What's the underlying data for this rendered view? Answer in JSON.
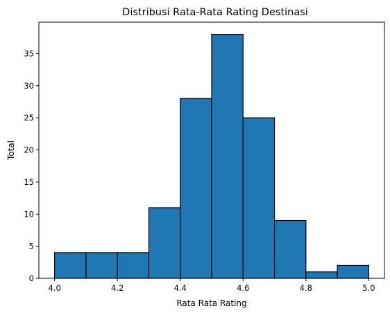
{
  "chart_data": {
    "type": "bar",
    "subtype": "histogram",
    "title": "Distribusi Rata-Rata Rating Destinasi",
    "xlabel": "Rata Rata Rating",
    "ylabel": "Total",
    "bins": [
      {
        "start": 4.0,
        "end": 4.1,
        "count": 4
      },
      {
        "start": 4.1,
        "end": 4.2,
        "count": 4
      },
      {
        "start": 4.2,
        "end": 4.3,
        "count": 4
      },
      {
        "start": 4.3,
        "end": 4.4,
        "count": 11
      },
      {
        "start": 4.4,
        "end": 4.5,
        "count": 28
      },
      {
        "start": 4.5,
        "end": 4.6,
        "count": 38
      },
      {
        "start": 4.6,
        "end": 4.7,
        "count": 25
      },
      {
        "start": 4.7,
        "end": 4.8,
        "count": 9
      },
      {
        "start": 4.8,
        "end": 4.9,
        "count": 1
      },
      {
        "start": 4.9,
        "end": 5.0,
        "count": 2
      }
    ],
    "xlim": [
      3.95,
      5.05
    ],
    "ylim": [
      0,
      39.9
    ],
    "xticks": [
      4.0,
      4.2,
      4.4,
      4.6,
      4.8,
      5.0
    ],
    "xtick_labels": [
      "4.0",
      "4.2",
      "4.4",
      "4.6",
      "4.8",
      "5.0"
    ],
    "yticks": [
      0,
      5,
      10,
      15,
      20,
      25,
      30,
      35
    ],
    "ytick_labels": [
      "0",
      "5",
      "10",
      "15",
      "20",
      "25",
      "30",
      "35"
    ],
    "bar_color": "#1f77b4",
    "edge_color": "#000000",
    "grid": false
  }
}
